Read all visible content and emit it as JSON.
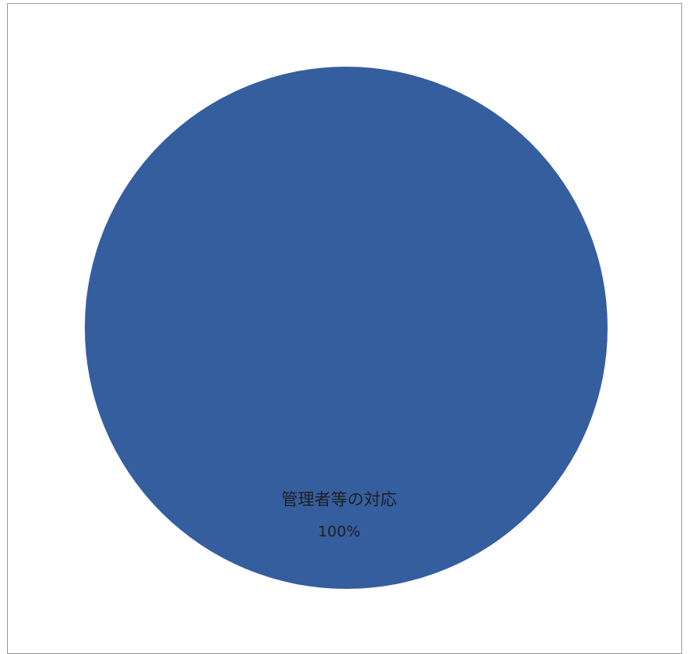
{
  "chart_data": {
    "type": "pie",
    "title": "",
    "slices": [
      {
        "label": "管理者等の対応",
        "value": 100,
        "display": "100%",
        "color": "#355e9f"
      }
    ],
    "legend": "none"
  }
}
